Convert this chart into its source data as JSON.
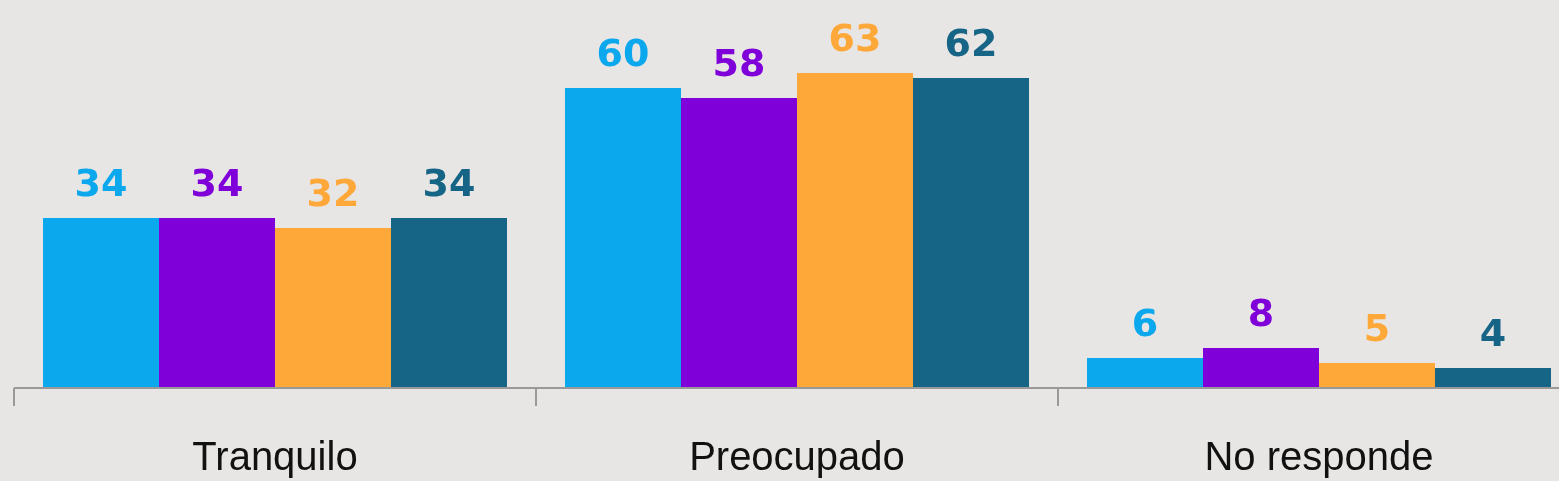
{
  "chart_data": {
    "type": "bar",
    "categories": [
      "Tranquilo",
      "Preocupado",
      "No responde"
    ],
    "series": [
      {
        "color": "#0ba8ee",
        "values": [
          34,
          60,
          6
        ]
      },
      {
        "color": "#7f00d9",
        "values": [
          34,
          58,
          8
        ]
      },
      {
        "color": "#ffa83a",
        "values": [
          32,
          63,
          5
        ]
      },
      {
        "color": "#176586",
        "values": [
          34,
          62,
          4
        ]
      }
    ],
    "ylim": [
      0,
      77.6
    ],
    "data_labels": true,
    "tick_labels": "x"
  }
}
